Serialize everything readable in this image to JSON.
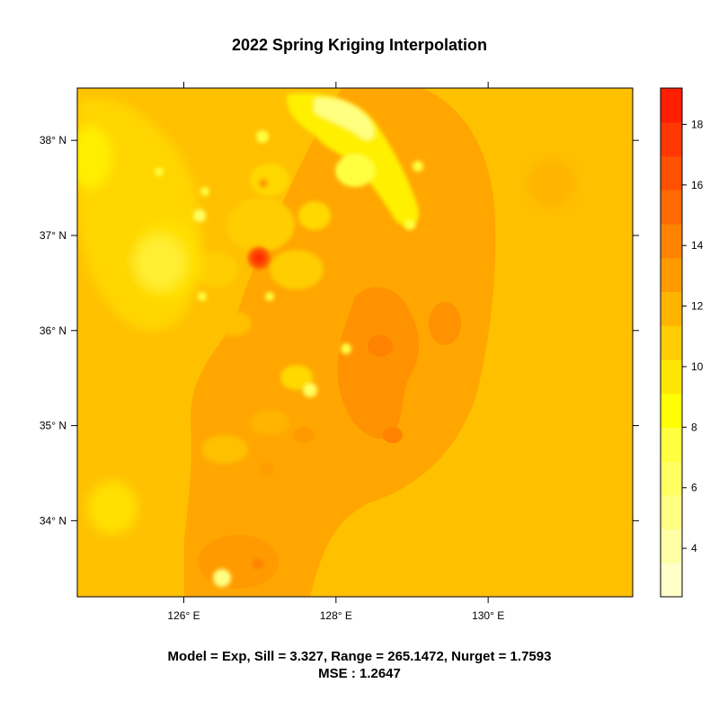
{
  "chart_data": {
    "type": "heatmap",
    "title": "2022 Spring Kriging Interpolation",
    "xlabel": "",
    "ylabel": "",
    "x_ticks": [
      {
        "value": 126,
        "label": "126° E"
      },
      {
        "value": 128,
        "label": "128° E"
      },
      {
        "value": 130,
        "label": "130° E"
      }
    ],
    "y_ticks": [
      {
        "value": 34,
        "label": "34° N"
      },
      {
        "value": 35,
        "label": "35° N"
      },
      {
        "value": 36,
        "label": "36° N"
      },
      {
        "value": 37,
        "label": "37° N"
      },
      {
        "value": 38,
        "label": "38° N"
      }
    ],
    "xlim": [
      124.6,
      131.9
    ],
    "ylim": [
      33.2,
      38.55
    ],
    "colorbar": {
      "range": [
        2.4,
        19.2
      ],
      "ticks": [
        4,
        6,
        8,
        10,
        12,
        14,
        16,
        18
      ],
      "colors": [
        "#FFFFC8",
        "#FFFFA6",
        "#FFFF84",
        "#FFFF62",
        "#FFFF40",
        "#FFFF00",
        "#FFE600",
        "#FFCD00",
        "#FFB400",
        "#FF9B00",
        "#FF8200",
        "#FF6900",
        "#FF5000",
        "#FF3700",
        "#FF1E00"
      ]
    },
    "surface": {
      "base": 12.2,
      "features": [
        {
          "lon": 130.8,
          "lat": 37.55,
          "value": 11.3,
          "radius": 0.3
        },
        {
          "lon": 125.7,
          "lat": 36.7,
          "value": 9.6,
          "radius": 0.6
        },
        {
          "lon": 124.8,
          "lat": 37.8,
          "value": 9.8,
          "radius": 0.4
        },
        {
          "lon": 125.3,
          "lat": 34.1,
          "value": 10.5,
          "radius": 0.4
        },
        {
          "lon": 128.3,
          "lat": 38.2,
          "value": 9.2,
          "radius": 0.35
        },
        {
          "lon": 127.0,
          "lat": 36.75,
          "value": 17.5,
          "radius": 0.12
        },
        {
          "lon": 126.5,
          "lat": 33.4,
          "value": 9.5,
          "radius": 0.15
        },
        {
          "lon": 128.6,
          "lat": 35.8,
          "value": 14.2,
          "radius": 0.35
        },
        {
          "lon": 128.7,
          "lat": 34.9,
          "value": 14.5,
          "radius": 0.2
        }
      ]
    }
  },
  "caption": {
    "line1": "Model = Exp, Sill = 3.327, Range = 265.1472, Nurget = 1.7593",
    "line2": "MSE : 1.2647"
  }
}
